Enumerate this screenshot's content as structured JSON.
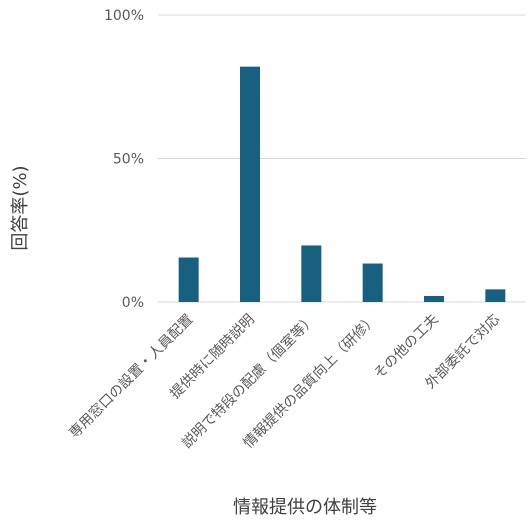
{
  "chart_data": {
    "type": "bar",
    "categories": [
      "専用窓口の設置・人員配置",
      "提供時に随時説明",
      "説明で特段の配慮（個室等）",
      "情報提供の品質向上（研修）",
      "その他の工夫",
      "外部委託で対応"
    ],
    "values": [
      15.5,
      82,
      19.7,
      13.4,
      2.1,
      4.4
    ],
    "ylim": [
      0,
      100
    ],
    "yticks": [
      "0%",
      "50%",
      "100%"
    ],
    "ytick_values": [
      0,
      50,
      100
    ],
    "xlabel": "情報提供の体制等",
    "ylabel": "回答率(%)",
    "grid": true,
    "colors": {
      "bar": "#17607f",
      "grid": "#d9d9d9"
    }
  }
}
